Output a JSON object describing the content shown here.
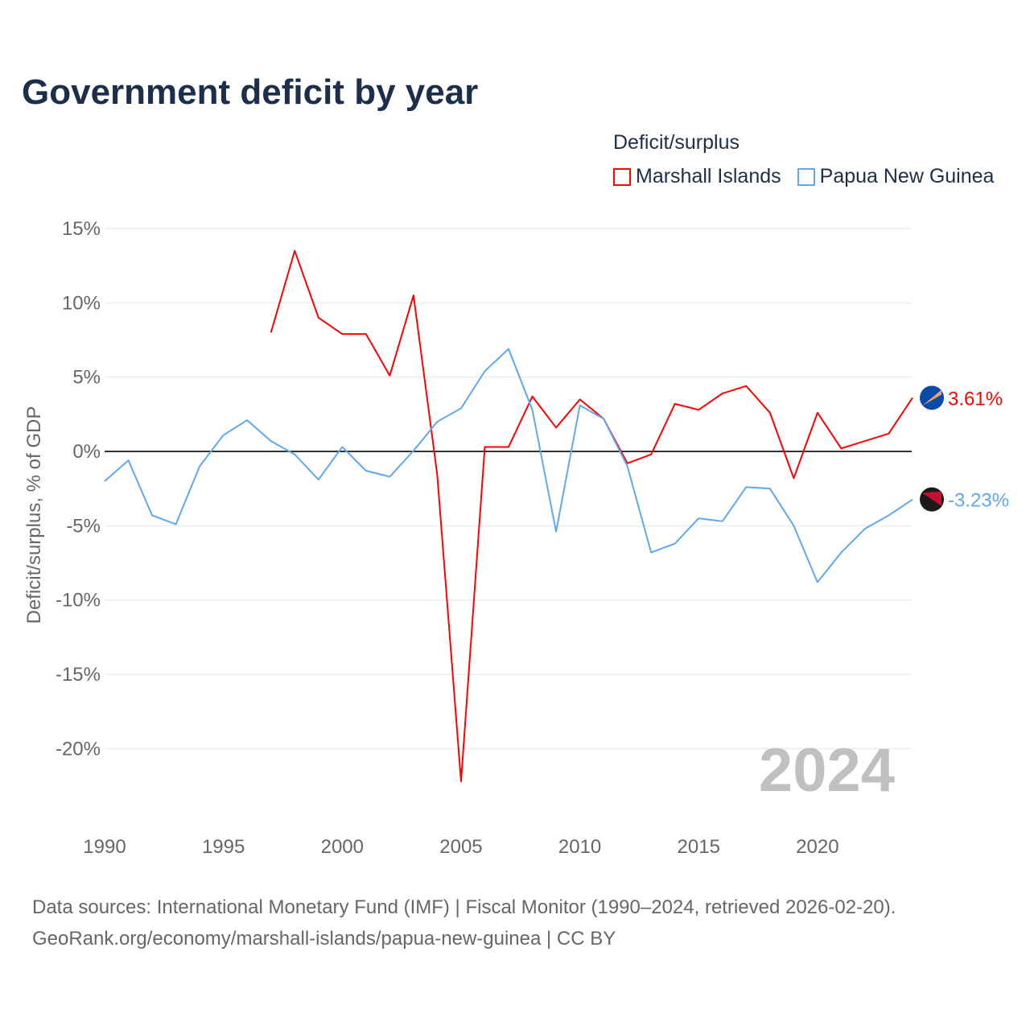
{
  "title": "Government deficit by year",
  "legend": {
    "title": "Deficit/surplus",
    "items": [
      {
        "label": "Marshall Islands",
        "color": "#ff0000"
      },
      {
        "label": "Papua New Guinea",
        "color": "#5fa8f0"
      }
    ]
  },
  "year_watermark": "2024",
  "source": {
    "line1": "Data sources: International Monetary Fund (IMF) | Fiscal Monitor (1990–2024, retrieved 2026-02-20).",
    "line2": "GeoRank.org/economy/marshall-islands/papua-new-guinea | CC BY"
  },
  "chart_data": {
    "type": "line",
    "title": "Government deficit by year",
    "xlabel": "",
    "ylabel": "Deficit/surplus, % of GDP",
    "xlim": [
      1990,
      2024
    ],
    "ylim": [
      -24.5,
      15
    ],
    "x_ticks": [
      1990,
      1995,
      2000,
      2005,
      2010,
      2015,
      2020
    ],
    "x_tick_labels": [
      "1990",
      "1995",
      "2000",
      "2005",
      "2010",
      "2015",
      "2020"
    ],
    "y_ticks": [
      15,
      10,
      5,
      0,
      -5,
      -10,
      -15,
      -20
    ],
    "y_tick_labels": [
      "15%",
      "10%",
      "5%",
      "0%",
      "-5%",
      "-10%",
      "-15%",
      "-20%"
    ],
    "grid": true,
    "legend_position": "top-right",
    "series": [
      {
        "name": "Marshall Islands",
        "color": "#ff0000",
        "end_label": "3.61%",
        "x": [
          1997,
          1998,
          1999,
          2000,
          2001,
          2002,
          2003,
          2004,
          2005,
          2006,
          2007,
          2008,
          2009,
          2010,
          2011,
          2012,
          2013,
          2014,
          2015,
          2016,
          2017,
          2018,
          2019,
          2020,
          2021,
          2022,
          2023,
          2024
        ],
        "values": [
          8.0,
          13.5,
          9.0,
          7.9,
          7.9,
          5.1,
          10.5,
          -1.6,
          -22.2,
          0.3,
          0.3,
          3.7,
          1.6,
          3.5,
          2.2,
          -0.8,
          -0.2,
          3.2,
          2.8,
          3.9,
          4.4,
          2.6,
          -1.8,
          2.6,
          0.2,
          0.7,
          1.2,
          3.61
        ]
      },
      {
        "name": "Papua New Guinea",
        "color": "#5fa8f0",
        "end_label": "-3.23%",
        "x": [
          1990,
          1991,
          1992,
          1993,
          1994,
          1995,
          1996,
          1997,
          1998,
          1999,
          2000,
          2001,
          2002,
          2003,
          2004,
          2005,
          2006,
          2007,
          2008,
          2009,
          2010,
          2011,
          2012,
          2013,
          2014,
          2015,
          2016,
          2017,
          2018,
          2019,
          2020,
          2021,
          2022,
          2023,
          2024
        ],
        "values": [
          -2.0,
          -0.6,
          -4.3,
          -4.9,
          -1.0,
          1.1,
          2.1,
          0.7,
          -0.2,
          -1.9,
          0.3,
          -1.3,
          -1.7,
          0.05,
          2.0,
          2.9,
          5.4,
          6.9,
          2.8,
          -5.4,
          3.1,
          2.2,
          -1.0,
          -6.8,
          -6.2,
          -4.5,
          -4.7,
          -2.4,
          -2.5,
          -5.0,
          -8.8,
          -6.8,
          -5.2,
          -4.3,
          -3.23
        ]
      }
    ]
  }
}
